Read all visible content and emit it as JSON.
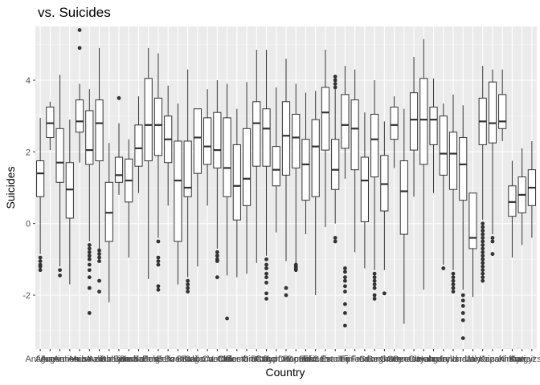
{
  "chart_data": {
    "type": "boxplot",
    "title": "vs. Suicides",
    "xlabel": "Country",
    "ylabel": "Suicides",
    "ylim": [
      -3.5,
      5.5
    ],
    "y_ticks": [
      -2,
      0,
      2,
      4
    ],
    "grid": true,
    "colors": {
      "panel": "#EBEBEB",
      "grid_major": "#FFFFFF",
      "grid_minor": "#F5F5F5",
      "box_fill": "#FFFFFF",
      "line": "#333333",
      "point": "#333333"
    },
    "categories": [
      "Antigua",
      "Albania",
      "Argentina",
      "Armenia",
      "Aruba",
      "Australia",
      "Austria",
      "Azerbaijan",
      "Bahamas",
      "Bahrain",
      "Barbados",
      "Belarus",
      "Belgium",
      "Belize",
      "Bosnia",
      "Brazil",
      "Bulgaria",
      "Cabo Verde",
      "Canada",
      "Chile",
      "Colombia",
      "Costa Rica",
      "Croatia",
      "Cuba",
      "Cyprus",
      "Czech Republic",
      "Denmark",
      "Dominica",
      "Ecuador",
      "El Salvador",
      "Estonia",
      "Fiji",
      "Finland",
      "France",
      "Georgia",
      "Germany",
      "Greece",
      "Grenada",
      "Guatemala",
      "Guyana",
      "Hungary",
      "Iceland",
      "Ireland",
      "Israel",
      "Italy",
      "Jamaica",
      "Japan",
      "Kazakhstan",
      "Kiribati",
      "Kuwait",
      "Kyrgyzstan"
    ],
    "tick_labels": [
      "Antigua",
      "Albania",
      "Argentina",
      "Armenia",
      "Aruba",
      "Australia",
      "Austria",
      "Azerbaijan",
      "Bahamas",
      "Bahrain",
      "Barbados",
      "Belarus",
      "Belgium",
      "Belize",
      "Bosnia",
      "Brazil",
      "Bulgaria",
      "Cabo Verde",
      "Canada",
      "Chile",
      "Colombia",
      "Costa Rica",
      "Croatia",
      "Cuba",
      "Cyprus",
      "Czech Republic",
      "Denmark",
      "Dominica",
      "Ecuador",
      "El Salvador",
      "Estonia",
      "Fiji",
      "Finland",
      "France",
      "Georgia",
      "Germany",
      "Greece",
      "Grenada",
      "Guatemala",
      "Guyana",
      "Hungary",
      "Iceland",
      "Ireland",
      "Israel",
      "Italy",
      "Jamaica",
      "Japan",
      "Kazakhstan",
      "Kiribati",
      "Kuwait",
      "Kyrgyzstan"
    ],
    "boxes": [
      {
        "q1": 0.75,
        "median": 1.4,
        "q3": 1.75,
        "lo": -0.85,
        "hi": 2.95,
        "outliers": [
          -0.95,
          -1.05,
          -1.15,
          -1.2,
          -1.3
        ]
      },
      {
        "q1": 2.4,
        "median": 2.8,
        "q3": 3.25,
        "lo": 2.05,
        "hi": 3.4,
        "outliers": []
      },
      {
        "q1": 1.15,
        "median": 1.7,
        "q3": 2.65,
        "lo": -1.2,
        "hi": 4.15,
        "outliers": [
          -1.3,
          -1.45
        ]
      },
      {
        "q1": 0.15,
        "median": 0.95,
        "q3": 1.7,
        "lo": -1.7,
        "hi": 2.9,
        "outliers": []
      },
      {
        "q1": 2.55,
        "median": 2.85,
        "q3": 3.45,
        "lo": 1.7,
        "hi": 3.9,
        "outliers": [
          4.9,
          5.4
        ]
      },
      {
        "q1": 1.65,
        "median": 2.05,
        "q3": 3.15,
        "lo": -0.5,
        "hi": 3.75,
        "outliers": [
          -0.6,
          -0.7,
          -0.8,
          -0.9,
          -1.0,
          -1.15,
          -1.3,
          -1.5,
          -1.8,
          -2.5
        ]
      },
      {
        "q1": 1.75,
        "median": 2.8,
        "q3": 3.45,
        "lo": -0.7,
        "hi": 4.9,
        "outliers": [
          -0.75,
          -0.85,
          -0.95,
          -1.05,
          -1.6,
          -1.9
        ]
      },
      {
        "q1": -0.5,
        "median": 0.3,
        "q3": 1.15,
        "lo": -2.2,
        "hi": 2.25,
        "outliers": []
      },
      {
        "q1": 1.15,
        "median": 1.35,
        "q3": 1.85,
        "lo": 0.8,
        "hi": 2.8,
        "outliers": [
          3.5
        ]
      },
      {
        "q1": 0.6,
        "median": 1.2,
        "q3": 1.8,
        "lo": -0.95,
        "hi": 2.35,
        "outliers": []
      },
      {
        "q1": 1.6,
        "median": 2.1,
        "q3": 2.75,
        "lo": 0.85,
        "hi": 3.55,
        "outliers": []
      },
      {
        "q1": 1.75,
        "median": 2.75,
        "q3": 4.05,
        "lo": -1.55,
        "hi": 4.9,
        "outliers": []
      },
      {
        "q1": 1.9,
        "median": 2.75,
        "q3": 3.5,
        "lo": -0.4,
        "hi": 4.75,
        "outliers": [
          -0.5,
          -0.95,
          -1.05,
          -1.15,
          -1.75,
          -1.85
        ]
      },
      {
        "q1": 1.7,
        "median": 2.35,
        "q3": 3.0,
        "lo": 0.5,
        "hi": 3.85,
        "outliers": []
      },
      {
        "q1": -0.5,
        "median": 1.2,
        "q3": 2.3,
        "lo": -1.7,
        "hi": 3.35,
        "outliers": []
      },
      {
        "q1": 0.75,
        "median": 1.0,
        "q3": 2.3,
        "lo": -1.5,
        "hi": 4.3,
        "outliers": [
          -1.6,
          -1.7,
          -1.8,
          -1.9
        ]
      },
      {
        "q1": 1.4,
        "median": 2.4,
        "q3": 3.2,
        "lo": -1.2,
        "hi": 3.2,
        "outliers": []
      },
      {
        "q1": 1.65,
        "median": 2.15,
        "q3": 2.95,
        "lo": 0.5,
        "hi": 3.75,
        "outliers": []
      },
      {
        "q1": 1.55,
        "median": 2.05,
        "q3": 3.1,
        "lo": -0.7,
        "hi": 4.0,
        "outliers": [
          -0.8,
          -0.9,
          -1.0,
          -1.05,
          -1.5
        ]
      },
      {
        "q1": 0.75,
        "median": 1.55,
        "q3": 2.95,
        "lo": -1.45,
        "hi": 3.9,
        "outliers": [
          -2.65
        ]
      },
      {
        "q1": 0.1,
        "median": 1.05,
        "q3": 2.2,
        "lo": -1.5,
        "hi": 3.2,
        "outliers": []
      },
      {
        "q1": 0.5,
        "median": 1.25,
        "q3": 2.65,
        "lo": -1.4,
        "hi": 3.95,
        "outliers": []
      },
      {
        "q1": 1.6,
        "median": 2.8,
        "q3": 3.4,
        "lo": -1.1,
        "hi": 4.85,
        "outliers": []
      },
      {
        "q1": 1.6,
        "median": 2.65,
        "q3": 3.2,
        "lo": -0.9,
        "hi": 4.85,
        "outliers": [
          -1.0,
          -1.15,
          -1.25,
          -1.4,
          -1.5,
          -1.65,
          -1.95,
          -2.1
        ]
      },
      {
        "q1": 1.05,
        "median": 1.5,
        "q3": 2.15,
        "lo": -0.25,
        "hi": 3.8,
        "outliers": []
      },
      {
        "q1": 1.35,
        "median": 2.45,
        "q3": 3.4,
        "lo": -1.05,
        "hi": 4.6,
        "outliers": [
          -1.8,
          -2.0
        ]
      },
      {
        "q1": 1.55,
        "median": 2.4,
        "q3": 3.05,
        "lo": -1.1,
        "hi": 3.9,
        "outliers": [
          -1.15,
          -1.2,
          -1.25,
          -1.3
        ]
      },
      {
        "q1": 0.65,
        "median": 1.65,
        "q3": 2.35,
        "lo": -0.3,
        "hi": 3.65,
        "outliers": []
      },
      {
        "q1": 0.75,
        "median": 2.15,
        "q3": 2.9,
        "lo": -2.0,
        "hi": 3.7,
        "outliers": []
      },
      {
        "q1": 2.05,
        "median": 3.1,
        "q3": 3.8,
        "lo": -0.1,
        "hi": 4.85,
        "outliers": []
      },
      {
        "q1": 0.95,
        "median": 1.5,
        "q3": 2.35,
        "lo": 0.0,
        "hi": 3.75,
        "outliers": [
          3.8,
          3.9,
          4.0,
          4.1,
          -0.4,
          -0.5
        ]
      },
      {
        "q1": 2.1,
        "median": 2.75,
        "q3": 3.6,
        "lo": 1.25,
        "hi": 4.4,
        "outliers": [
          -1.25,
          -1.35,
          -1.5,
          -1.6,
          -1.75,
          -1.9,
          -2.25,
          -2.5,
          -2.85
        ]
      },
      {
        "q1": 1.5,
        "median": 2.65,
        "q3": 3.45,
        "lo": -0.8,
        "hi": 4.3,
        "outliers": []
      },
      {
        "q1": 0.05,
        "median": 1.2,
        "q3": 1.85,
        "lo": -1.25,
        "hi": 3.1,
        "outliers": []
      },
      {
        "q1": 1.3,
        "median": 2.35,
        "q3": 3.05,
        "lo": -1.3,
        "hi": 4.0,
        "outliers": [
          -1.4,
          -1.5,
          -1.6,
          -1.7,
          -1.8,
          -2.0,
          -2.1
        ]
      },
      {
        "q1": 0.35,
        "median": 1.1,
        "q3": 1.9,
        "lo": -1.3,
        "hi": 2.85,
        "outliers": [
          -1.95
        ]
      },
      {
        "q1": 2.35,
        "median": 2.75,
        "q3": 3.25,
        "lo": 1.55,
        "hi": 3.55,
        "outliers": []
      },
      {
        "q1": -0.3,
        "median": 0.9,
        "q3": 1.75,
        "lo": -2.8,
        "hi": 3.2,
        "outliers": []
      },
      {
        "q1": 2.05,
        "median": 2.9,
        "q3": 3.65,
        "lo": 0.75,
        "hi": 4.65,
        "outliers": []
      },
      {
        "q1": 1.65,
        "median": 2.9,
        "q3": 4.05,
        "lo": -1.85,
        "hi": 5.15,
        "outliers": []
      },
      {
        "q1": 2.2,
        "median": 2.9,
        "q3": 3.25,
        "lo": 0.85,
        "hi": 4.05,
        "outliers": []
      },
      {
        "q1": 1.35,
        "median": 1.95,
        "q3": 3.0,
        "lo": -1.15,
        "hi": 3.35,
        "outliers": [
          -1.25
        ]
      },
      {
        "q1": 0.95,
        "median": 1.95,
        "q3": 2.55,
        "lo": -1.3,
        "hi": 3.6,
        "outliers": [
          -1.4,
          -1.5,
          -1.6,
          -1.7,
          -1.8,
          -1.9
        ]
      },
      {
        "q1": 0.65,
        "median": 1.65,
        "q3": 2.4,
        "lo": -1.85,
        "hi": 3.3,
        "outliers": [
          -2.0,
          -2.15,
          -2.3,
          -2.5,
          -2.7,
          -3.2
        ]
      },
      {
        "q1": -0.7,
        "median": -0.4,
        "q3": 0.85,
        "lo": -2.05,
        "hi": 0.85,
        "outliers": []
      },
      {
        "q1": 2.2,
        "median": 2.85,
        "q3": 3.5,
        "lo": 0.1,
        "hi": 4.4,
        "outliers": [
          0.0,
          -0.1,
          -0.2,
          -0.3,
          -0.4,
          -0.5,
          -0.6,
          -0.7,
          -0.8,
          -0.9,
          -1.0,
          -1.1,
          -1.2,
          -1.3,
          -1.4,
          -1.5,
          -1.6
        ]
      },
      {
        "q1": 2.25,
        "median": 2.8,
        "q3": 3.95,
        "lo": -0.3,
        "hi": 4.3,
        "outliers": [
          -0.4,
          -0.5,
          -0.85
        ]
      },
      {
        "q1": 2.65,
        "median": 2.85,
        "q3": 3.6,
        "lo": 2.3,
        "hi": 4.3,
        "outliers": []
      },
      {
        "q1": 0.2,
        "median": 0.6,
        "q3": 1.05,
        "lo": -0.95,
        "hi": 1.75,
        "outliers": []
      },
      {
        "q1": 0.3,
        "median": 0.8,
        "q3": 1.3,
        "lo": -0.6,
        "hi": 2.1,
        "outliers": []
      },
      {
        "q1": 0.5,
        "median": 1.0,
        "q3": 1.5,
        "lo": -0.4,
        "hi": 2.3,
        "outliers": []
      }
    ]
  }
}
